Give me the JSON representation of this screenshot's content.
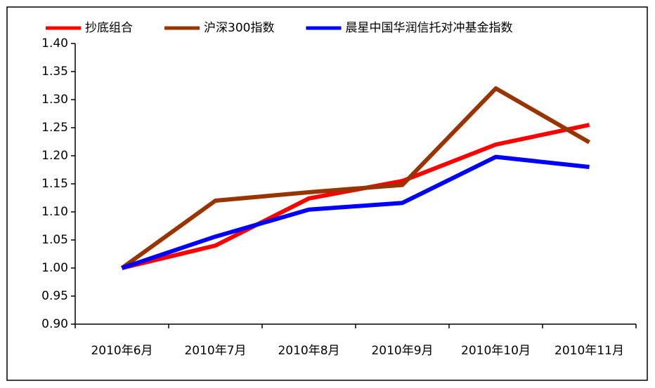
{
  "chart_data": {
    "type": "line",
    "categories": [
      "2010年6月",
      "2010年7月",
      "2010年8月",
      "2010年9月",
      "2010年10月",
      "2010年11月"
    ],
    "series": [
      {
        "name": "抄底组合",
        "color": "#ff0000",
        "values": [
          1.0,
          1.04,
          1.124,
          1.155,
          1.22,
          1.255
        ]
      },
      {
        "name": "沪深300指数",
        "color": "#993300",
        "values": [
          1.0,
          1.12,
          1.135,
          1.148,
          1.32,
          1.224
        ]
      },
      {
        "name": "晨星中国华润信托对冲基金指数",
        "color": "#0000ff",
        "values": [
          1.0,
          1.056,
          1.104,
          1.116,
          1.198,
          1.18
        ]
      }
    ],
    "ylim": [
      0.9,
      1.4
    ],
    "yticks": [
      {
        "value": 0.9,
        "label": "0.90"
      },
      {
        "value": 0.95,
        "label": "0.95"
      },
      {
        "value": 1.0,
        "label": "1.00"
      },
      {
        "value": 1.05,
        "label": "1.05"
      },
      {
        "value": 1.1,
        "label": "1.10"
      },
      {
        "value": 1.15,
        "label": "1.15"
      },
      {
        "value": 1.2,
        "label": "1.20"
      },
      {
        "value": 1.25,
        "label": "1.25"
      },
      {
        "value": 1.3,
        "label": "1.30"
      },
      {
        "value": 1.35,
        "label": "1.35"
      },
      {
        "value": 1.4,
        "label": "1.40"
      }
    ],
    "legend": "top",
    "grid": false
  }
}
